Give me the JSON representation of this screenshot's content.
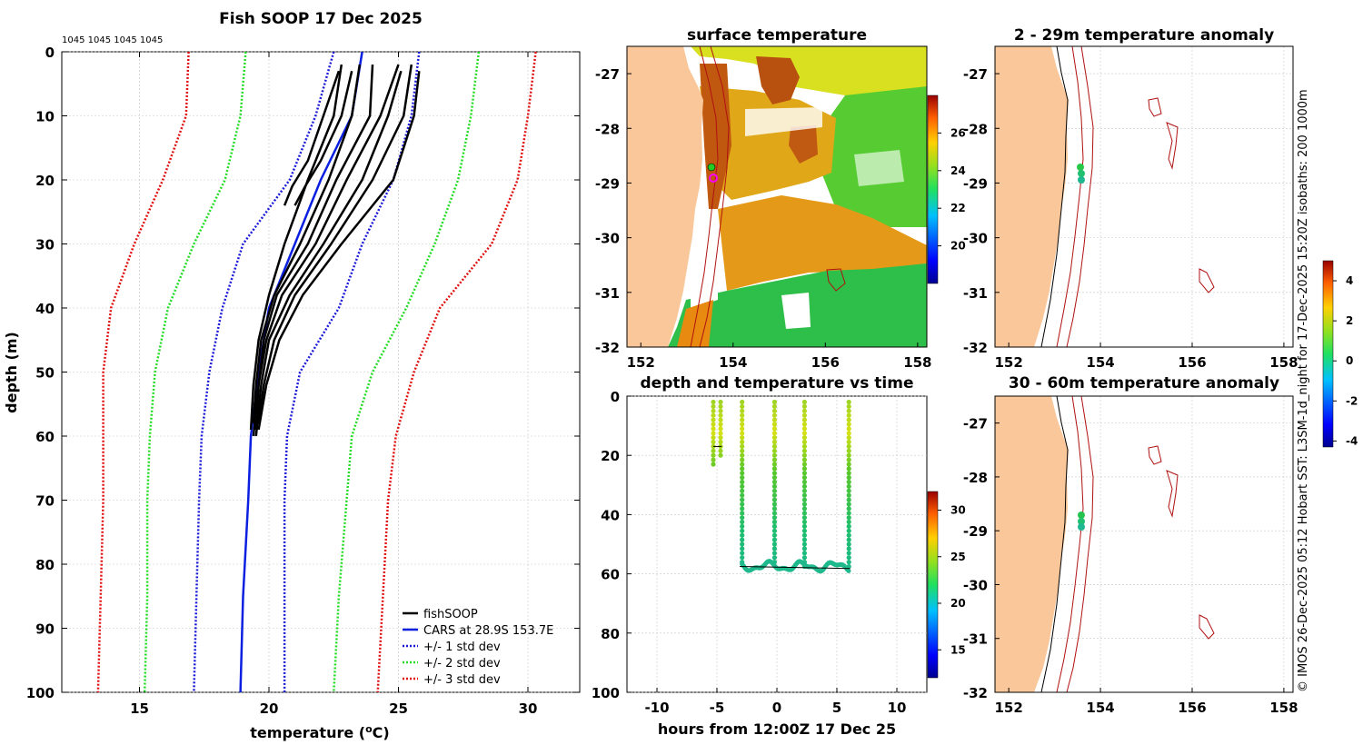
{
  "colors": {
    "profile": "#000000",
    "cars": "#0a1fe0",
    "std1": "#1a1ad8",
    "std2": "#22dd22",
    "std3": "#e01010",
    "land": "#f9c79a",
    "isobath": "#b01010",
    "grid": "#c8c8c8"
  },
  "chart_data": [
    {
      "type": "line",
      "title": "Fish SOOP 17 Dec 2025",
      "ids_label": "1045 1045 1045 1045",
      "xlabel": "temperature (°C)",
      "ylabel": "depth (m)",
      "xlim": [
        12,
        32
      ],
      "ylim": [
        0,
        100
      ],
      "xticks": [
        "15",
        "20",
        "25",
        "30"
      ],
      "yticks": [
        "0",
        "10",
        "20",
        "30",
        "40",
        "50",
        "60",
        "70",
        "80",
        "90",
        "100"
      ],
      "legend": [
        "fishSOOP",
        "CARS at 28.9S 153.7E",
        "+/- 1 std dev",
        "+/- 2 std dev",
        "+/- 3 std dev"
      ],
      "series": [
        {
          "name": "CARS at 28.9S 153.7E",
          "style": "solid",
          "x": [
            23.6,
            23.2,
            22.0,
            21.0,
            20.0,
            19.6,
            19.3,
            19.2,
            19.0,
            18.9
          ],
          "depth": [
            0,
            10,
            20,
            30,
            40,
            50,
            60,
            70,
            85,
            100
          ]
        },
        {
          "name": "+1 std dev",
          "style": "dotted",
          "x": [
            25.8,
            25.5,
            24.8,
            23.6,
            22.7,
            21.2,
            20.7,
            20.6,
            20.6,
            20.6
          ],
          "depth": [
            0,
            10,
            20,
            30,
            40,
            50,
            60,
            70,
            85,
            100
          ]
        },
        {
          "name": "-1 std dev",
          "style": "dotted",
          "x": [
            22.5,
            21.8,
            20.8,
            19.0,
            18.2,
            17.7,
            17.4,
            17.3,
            17.2,
            17.1
          ],
          "depth": [
            0,
            10,
            20,
            30,
            40,
            50,
            60,
            70,
            85,
            100
          ]
        },
        {
          "name": "+2 std dev",
          "style": "dotted",
          "x": [
            28.1,
            27.8,
            27.3,
            26.4,
            25.3,
            24.0,
            23.2,
            23.0,
            22.7,
            22.5
          ],
          "depth": [
            0,
            10,
            20,
            30,
            40,
            50,
            60,
            70,
            85,
            100
          ]
        },
        {
          "name": "-2 std dev",
          "style": "dotted",
          "x": [
            19.1,
            18.9,
            18.3,
            17.1,
            16.1,
            15.6,
            15.4,
            15.3,
            15.3,
            15.2
          ],
          "depth": [
            0,
            10,
            20,
            30,
            40,
            50,
            60,
            70,
            85,
            100
          ]
        },
        {
          "name": "+3 std dev",
          "style": "dotted",
          "x": [
            30.3,
            30.0,
            29.6,
            28.6,
            26.6,
            25.6,
            24.9,
            24.6,
            24.4,
            24.2
          ],
          "depth": [
            0,
            10,
            20,
            30,
            40,
            50,
            60,
            70,
            85,
            100
          ]
        },
        {
          "name": "-3 std dev",
          "style": "dotted",
          "x": [
            16.9,
            16.8,
            15.9,
            14.8,
            13.9,
            13.6,
            13.6,
            13.6,
            13.5,
            13.4
          ],
          "depth": [
            0,
            10,
            20,
            30,
            40,
            50,
            60,
            70,
            85,
            100
          ]
        }
      ],
      "profiles": [
        {
          "x": [
            22.8,
            22.5,
            21.5,
            20.6,
            20.0,
            19.6,
            19.4,
            19.3
          ],
          "depth": [
            2,
            10,
            20,
            30,
            38,
            45,
            52,
            59
          ]
        },
        {
          "x": [
            23.5,
            23.2,
            22.3,
            21.2,
            20.2,
            19.7,
            19.5,
            19.4
          ],
          "depth": [
            2,
            10,
            20,
            30,
            38,
            45,
            52,
            58
          ]
        },
        {
          "x": [
            24.0,
            23.9,
            22.6,
            21.5,
            20.3,
            19.8,
            19.6,
            19.5
          ],
          "depth": [
            2,
            10,
            20,
            30,
            38,
            45,
            52,
            59
          ]
        },
        {
          "x": [
            25.0,
            24.3,
            23.0,
            21.8,
            20.5,
            19.9,
            19.6,
            19.4
          ],
          "depth": [
            2,
            10,
            20,
            30,
            38,
            45,
            52,
            60
          ]
        },
        {
          "x": [
            25.1,
            24.6,
            23.6,
            22.1,
            20.8,
            20.0,
            19.7,
            19.5
          ],
          "depth": [
            3,
            10,
            20,
            30,
            38,
            45,
            52,
            60
          ]
        },
        {
          "x": [
            25.5,
            25.2,
            24.0,
            22.4,
            21.0,
            20.2,
            19.8,
            19.6
          ],
          "depth": [
            2,
            10,
            20,
            30,
            38,
            45,
            52,
            58
          ]
        },
        {
          "x": [
            25.8,
            25.6,
            24.8,
            22.8,
            21.3,
            20.4,
            19.9,
            19.6
          ],
          "depth": [
            3,
            10,
            20,
            30,
            38,
            45,
            52,
            59
          ]
        },
        {
          "x": [
            22.7,
            22.1,
            21.5,
            20.9,
            20.6
          ],
          "depth": [
            3,
            10,
            17,
            21,
            24
          ]
        },
        {
          "x": [
            23.2,
            22.8,
            22.0,
            21.4,
            21.0
          ],
          "depth": [
            3,
            10,
            17,
            21,
            24
          ]
        }
      ]
    },
    {
      "type": "heatmap",
      "title": "surface temperature",
      "xlim": [
        151.7,
        158.2
      ],
      "ylim": [
        -32,
        -26.5
      ],
      "xticks": [
        "152",
        "154",
        "156",
        "158"
      ],
      "yticks": [
        "-27",
        "-28",
        "-29",
        "-30",
        "-31",
        "-32"
      ],
      "colorbar": {
        "range": [
          18,
          28
        ],
        "ticks": [
          "20",
          "22",
          "24",
          "26"
        ]
      }
    },
    {
      "type": "scatter",
      "title": "depth and temperature vs time",
      "xlabel": "hours from 12:00Z 17 Dec 25",
      "xlim": [
        -12.5,
        12.5
      ],
      "ylim": [
        0,
        100
      ],
      "xticks": [
        "-10",
        "-5",
        "0",
        "5",
        "10"
      ],
      "yticks": [
        "0",
        "20",
        "40",
        "60",
        "80",
        "100"
      ],
      "colorbar": {
        "range": [
          12,
          32
        ],
        "ticks": [
          "15",
          "20",
          "25",
          "30"
        ]
      },
      "casts": [
        {
          "t0": -5.3,
          "t1": -5.2,
          "max_depth": 23
        },
        {
          "t0": -4.7,
          "t1": -4.6,
          "max_depth": 20
        },
        {
          "t0": -2.9,
          "t1": -2.9,
          "max_depth": 57
        },
        {
          "t0": -0.2,
          "t1": -0.2,
          "max_depth": 57
        },
        {
          "t0": 2.3,
          "t1": 2.4,
          "max_depth": 58
        },
        {
          "t0": 6.0,
          "t1": 6.1,
          "max_depth": 58
        }
      ]
    },
    {
      "type": "map",
      "title": "2 - 29m temperature anomaly",
      "xlim": [
        151.7,
        158.2
      ],
      "ylim": [
        -32,
        -26.5
      ],
      "xticks": [
        "152",
        "154",
        "156",
        "158"
      ],
      "yticks": [
        "-27",
        "-28",
        "-29",
        "-30",
        "-31",
        "-32"
      ]
    },
    {
      "type": "map",
      "title": "30 - 60m temperature anomaly",
      "xlim": [
        151.7,
        158.2
      ],
      "ylim": [
        -32,
        -26.5
      ],
      "xticks": [
        "152",
        "154",
        "156",
        "158"
      ],
      "yticks": [
        "-27",
        "-28",
        "-29",
        "-30",
        "-31",
        "-32"
      ]
    }
  ],
  "anomaly_colorbar": {
    "range": [
      -4.3,
      5.0
    ],
    "ticks": [
      "4",
      "2",
      "0",
      "-2",
      "-4"
    ]
  },
  "credit": "© IMOS 26-Dec-2025 05:12 Hobart SST: L3SM-1d_night for 17-Dec-2025 15:20Z isobaths: 200  1000m"
}
